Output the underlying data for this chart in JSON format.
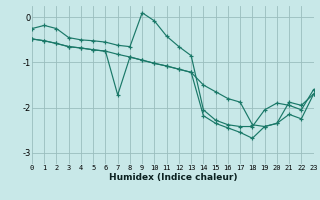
{
  "xlabel": "Humidex (Indice chaleur)",
  "background_color": "#c8e8e8",
  "grid_color": "#9abebe",
  "line_color": "#1a7868",
  "xlim": [
    0,
    23
  ],
  "ylim": [
    -3.25,
    0.25
  ],
  "yticks": [
    0,
    -1,
    -2,
    -3
  ],
  "xticks": [
    0,
    1,
    2,
    3,
    4,
    5,
    6,
    7,
    8,
    9,
    10,
    11,
    12,
    13,
    14,
    15,
    16,
    17,
    18,
    19,
    20,
    21,
    22,
    23
  ],
  "series": [
    {
      "x": [
        0,
        1,
        2,
        3,
        4,
        5,
        6,
        7,
        8,
        9,
        10,
        11,
        12,
        13,
        14,
        15,
        16,
        17,
        18,
        19,
        20,
        21,
        22,
        23
      ],
      "y": [
        -0.25,
        -0.18,
        -0.25,
        -0.45,
        -0.5,
        -0.52,
        -0.55,
        -0.62,
        -0.65,
        0.1,
        -0.08,
        -0.42,
        -0.65,
        -0.85,
        -2.05,
        -2.28,
        -2.38,
        -2.42,
        -2.42,
        -2.05,
        -1.9,
        -1.95,
        -2.05,
        -1.6
      ]
    },
    {
      "x": [
        0,
        1,
        2,
        3,
        4,
        5,
        6,
        7,
        8,
        9,
        10,
        11,
        12,
        13,
        14,
        15,
        16,
        17,
        18,
        19,
        20,
        21,
        22,
        23
      ],
      "y": [
        -0.48,
        -0.52,
        -0.58,
        -0.65,
        -0.68,
        -0.72,
        -0.75,
        -0.82,
        -0.88,
        -0.95,
        -1.02,
        -1.08,
        -1.15,
        -1.22,
        -1.5,
        -1.65,
        -1.8,
        -1.88,
        -2.38,
        -2.42,
        -2.35,
        -1.88,
        -1.95,
        -1.7
      ]
    },
    {
      "x": [
        0,
        1,
        2,
        3,
        4,
        5,
        6,
        7,
        8,
        9,
        10,
        11,
        12,
        13,
        14,
        15,
        16,
        17,
        18,
        19,
        20,
        21,
        22,
        23
      ],
      "y": [
        -0.48,
        -0.52,
        -0.58,
        -0.65,
        -0.68,
        -0.72,
        -0.75,
        -1.72,
        -0.88,
        -0.95,
        -1.02,
        -1.08,
        -1.15,
        -1.22,
        -2.18,
        -2.35,
        -2.45,
        -2.55,
        -2.68,
        -2.42,
        -2.35,
        -2.15,
        -2.25,
        -1.7
      ]
    }
  ]
}
